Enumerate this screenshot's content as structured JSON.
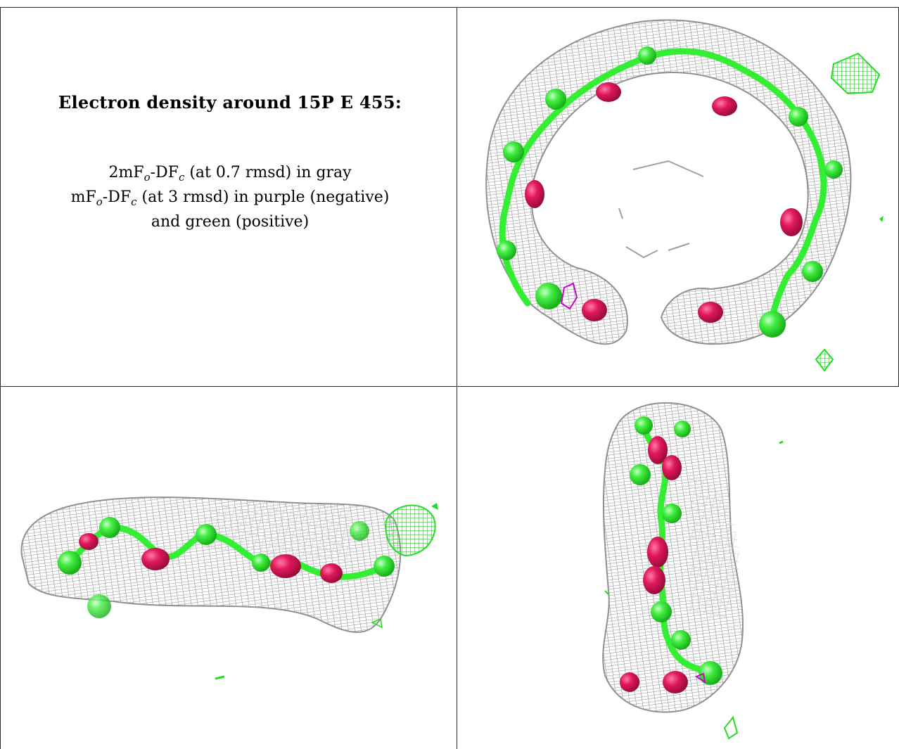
{
  "caption": {
    "title": "Electron density around 15P E 455:",
    "lines": [
      {
        "parts": [
          "2mF",
          "o",
          "-DF",
          "c",
          " (at 0.7 rmsd) in gray"
        ]
      },
      {
        "parts": [
          "mF",
          "o",
          "-DF",
          "c",
          " (at 3 rmsd) in purple (negative)"
        ]
      },
      {
        "parts": [
          "and green (positive)"
        ]
      }
    ]
  },
  "colors": {
    "mesh_gray": "#8a8a8a",
    "atom_green": "#33ee33",
    "atom_magenta": "#e0185a",
    "diff_green": "#22dd22",
    "diff_purple": "#cc00cc"
  }
}
